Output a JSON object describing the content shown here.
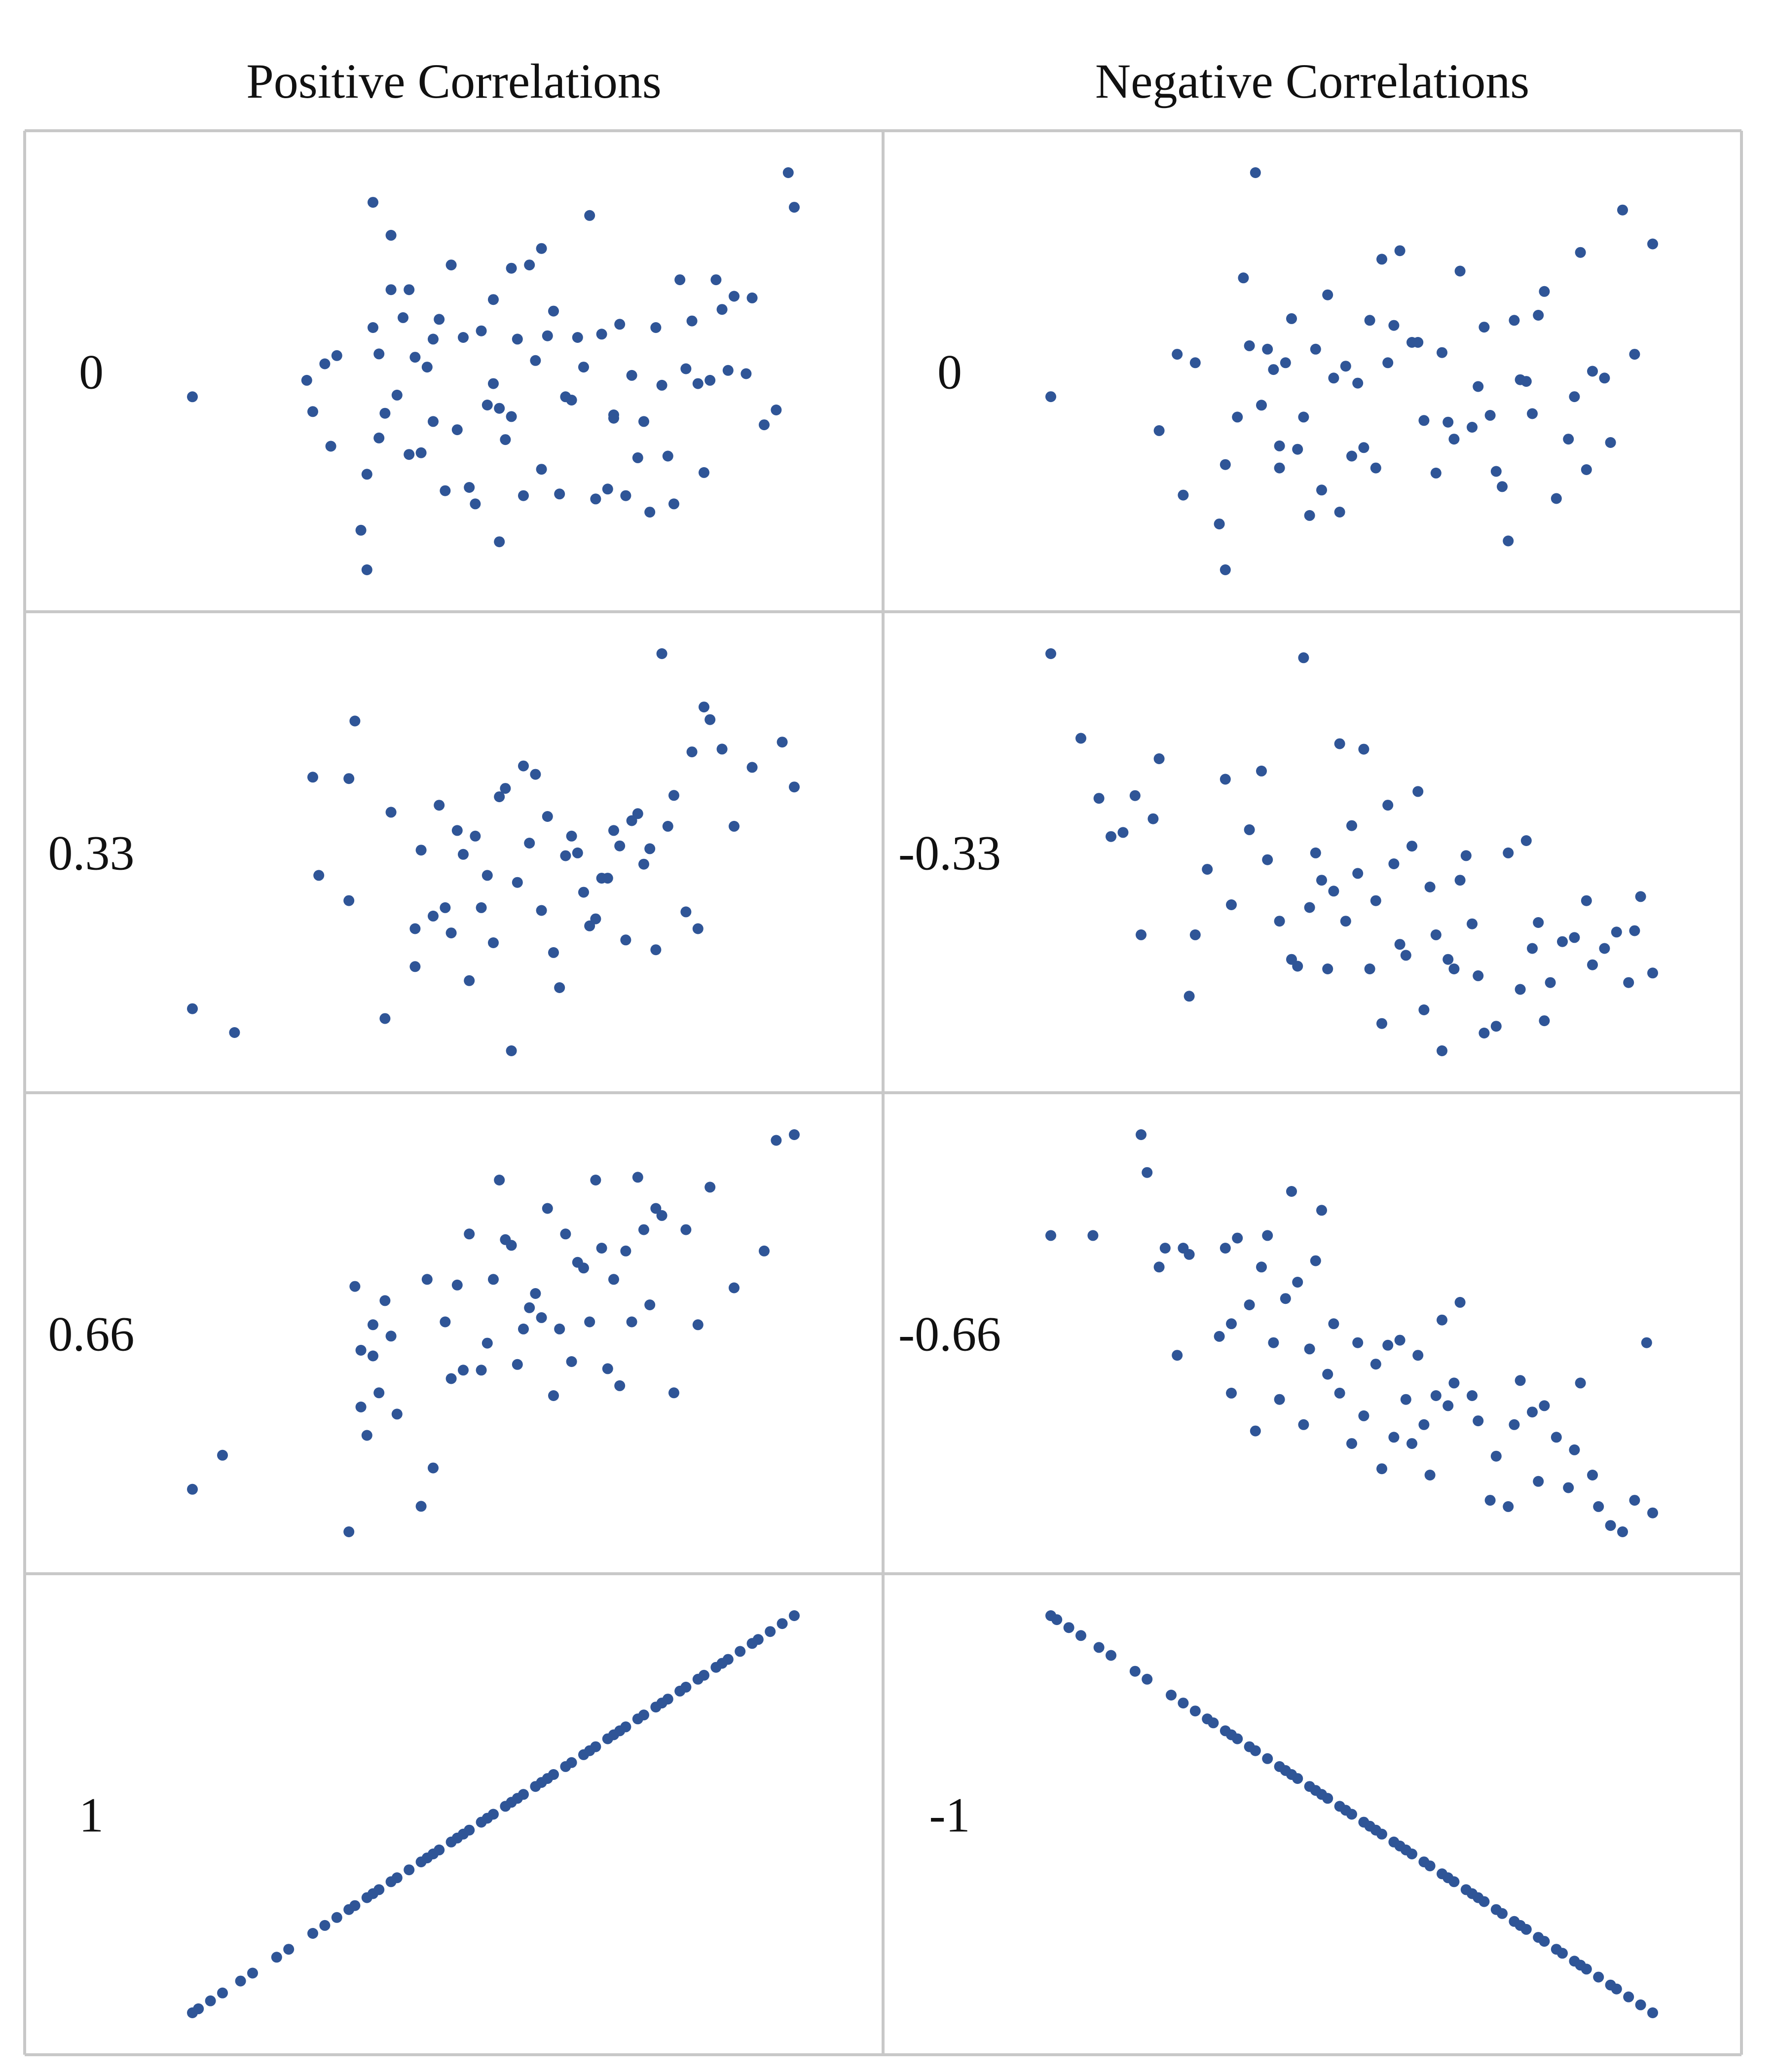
{
  "column_titles": {
    "positive": "Positive Correlations",
    "negative": "Negative Correlations"
  },
  "row_labels": {
    "positive": [
      "0",
      "0.33",
      "0.66",
      "1"
    ],
    "negative": [
      "0",
      "-0.33",
      "-0.66",
      "-1"
    ]
  },
  "colors": {
    "point": "#2f5597",
    "grid": "#c8c8c8",
    "text": "#111111"
  },
  "chart_data": [
    {
      "type": "scatter",
      "panel": "positive",
      "label": "0",
      "x": [
        0.0,
        0.19,
        0.2,
        0.22,
        0.23,
        0.24,
        0.28,
        0.29,
        0.29,
        0.3,
        0.3,
        0.31,
        0.31,
        0.32,
        0.33,
        0.33,
        0.34,
        0.35,
        0.36,
        0.36,
        0.37,
        0.38,
        0.39,
        0.4,
        0.4,
        0.41,
        0.42,
        0.43,
        0.44,
        0.45,
        0.46,
        0.47,
        0.48,
        0.49,
        0.5,
        0.5,
        0.51,
        0.51,
        0.52,
        0.53,
        0.53,
        0.54,
        0.55,
        0.56,
        0.57,
        0.58,
        0.58,
        0.59,
        0.6,
        0.61,
        0.62,
        0.63,
        0.64,
        0.65,
        0.66,
        0.67,
        0.68,
        0.69,
        0.7,
        0.7,
        0.71,
        0.72,
        0.73,
        0.74,
        0.75,
        0.76,
        0.77,
        0.78,
        0.79,
        0.8,
        0.81,
        0.82,
        0.83,
        0.84,
        0.85,
        0.86,
        0.87,
        0.88,
        0.89,
        0.9,
        0.92,
        0.93,
        0.95,
        0.97,
        0.99,
        1.0
      ],
      "y": [
        0.0,
        0.1,
        -0.09,
        0.2,
        -0.3,
        0.25,
        -0.81,
        -0.47,
        -1.05,
        1.18,
        0.42,
        0.26,
        -0.25,
        -0.1,
        0.98,
        0.65,
        0.01,
        0.48,
        -0.35,
        0.65,
        0.24,
        -0.34,
        0.18,
        0.35,
        -0.15,
        0.47,
        -0.57,
        0.8,
        -0.2,
        0.36,
        -0.55,
        -0.65,
        0.4,
        -0.05,
        0.59,
        0.08,
        -0.07,
        -0.88,
        -0.26,
        0.78,
        -0.12,
        0.35,
        -0.6,
        0.8,
        0.22,
        0.9,
        -0.44,
        0.37,
        0.52,
        -0.59,
        0.0,
        -0.02,
        0.36,
        0.18,
        1.1,
        -0.62,
        0.38,
        -0.56,
        -0.13,
        -0.11,
        0.44,
        -0.6,
        0.13,
        -0.37,
        -0.15,
        -0.7,
        0.42,
        0.07,
        -0.36,
        -0.65,
        0.71,
        0.17,
        0.46,
        0.08,
        -0.46,
        0.1,
        0.71,
        0.53,
        0.16,
        0.61,
        0.14,
        0.6,
        -0.17,
        -0.08,
        1.36,
        1.15
      ],
      "note": ""
    },
    {
      "type": "scatter",
      "panel": "negative",
      "label": "0",
      "x": [
        0.0,
        0.18,
        0.21,
        0.22,
        0.24,
        0.28,
        0.29,
        0.29,
        0.31,
        0.32,
        0.33,
        0.34,
        0.35,
        0.36,
        0.37,
        0.38,
        0.38,
        0.39,
        0.4,
        0.41,
        0.42,
        0.43,
        0.44,
        0.45,
        0.46,
        0.47,
        0.48,
        0.49,
        0.5,
        0.51,
        0.52,
        0.53,
        0.54,
        0.55,
        0.56,
        0.57,
        0.58,
        0.6,
        0.61,
        0.62,
        0.64,
        0.65,
        0.66,
        0.67,
        0.68,
        0.7,
        0.71,
        0.72,
        0.73,
        0.74,
        0.75,
        0.76,
        0.77,
        0.78,
        0.79,
        0.8,
        0.81,
        0.82,
        0.84,
        0.86,
        0.87,
        0.88,
        0.89,
        0.9,
        0.92,
        0.93,
        0.95,
        0.97,
        1.0
      ],
      "y": [
        0.0,
        -0.2,
        0.25,
        -0.58,
        0.2,
        -0.75,
        -1.02,
        -0.4,
        -0.12,
        0.7,
        0.3,
        1.32,
        -0.05,
        0.28,
        0.16,
        -0.42,
        -0.29,
        0.2,
        0.46,
        -0.31,
        -0.12,
        -0.7,
        0.28,
        -0.55,
        0.6,
        0.11,
        -0.68,
        0.18,
        -0.35,
        0.08,
        -0.3,
        0.45,
        -0.42,
        0.81,
        0.2,
        0.42,
        0.86,
        0.32,
        0.32,
        -0.14,
        -0.45,
        0.26,
        -0.15,
        -0.25,
        0.74,
        -0.18,
        0.06,
        0.41,
        -0.11,
        -0.44,
        -0.53,
        -0.85,
        0.45,
        0.1,
        0.09,
        -0.1,
        0.48,
        0.62,
        -0.6,
        -0.25,
        0.0,
        0.85,
        -0.43,
        0.15,
        0.11,
        -0.27,
        1.1,
        0.25,
        0.9
      ],
      "note": ""
    },
    {
      "type": "scatter",
      "panel": "positive",
      "label": "0.33",
      "x": [
        0.0,
        0.07,
        0.2,
        0.21,
        0.26,
        0.26,
        0.27,
        0.32,
        0.33,
        0.37,
        0.37,
        0.38,
        0.4,
        0.41,
        0.42,
        0.43,
        0.44,
        0.45,
        0.46,
        0.47,
        0.48,
        0.49,
        0.5,
        0.51,
        0.52,
        0.53,
        0.54,
        0.55,
        0.56,
        0.57,
        0.58,
        0.59,
        0.6,
        0.61,
        0.62,
        0.63,
        0.64,
        0.65,
        0.66,
        0.67,
        0.68,
        0.69,
        0.7,
        0.71,
        0.72,
        0.73,
        0.74,
        0.75,
        0.76,
        0.77,
        0.78,
        0.79,
        0.8,
        0.82,
        0.83,
        0.84,
        0.85,
        0.86,
        0.88,
        0.9,
        0.93,
        0.98,
        1.0
      ],
      "y": [
        -0.95,
        -1.12,
        0.7,
        0.0,
        0.69,
        -0.18,
        1.1,
        -1.02,
        0.45,
        -0.65,
        -0.38,
        0.18,
        -0.29,
        0.5,
        -0.23,
        -0.41,
        0.32,
        0.15,
        -0.75,
        0.28,
        -0.23,
        0.0,
        -0.48,
        0.56,
        0.62,
        -1.25,
        -0.05,
        0.78,
        0.23,
        0.72,
        -0.25,
        0.42,
        -0.55,
        -0.8,
        0.14,
        0.28,
        0.16,
        -0.12,
        -0.36,
        -0.31,
        -0.02,
        -0.02,
        0.32,
        0.21,
        -0.46,
        0.39,
        0.44,
        0.08,
        0.19,
        -0.53,
        1.58,
        0.35,
        0.57,
        -0.26,
        0.88,
        -0.38,
        1.2,
        1.11,
        0.9,
        0.35,
        0.77,
        0.95,
        0.63
      ],
      "note": ""
    },
    {
      "type": "scatter",
      "panel": "negative",
      "label": "-0.33",
      "x": [
        0.0,
        0.05,
        0.08,
        0.1,
        0.12,
        0.14,
        0.15,
        0.17,
        0.18,
        0.23,
        0.24,
        0.26,
        0.29,
        0.3,
        0.33,
        0.35,
        0.36,
        0.38,
        0.4,
        0.41,
        0.42,
        0.43,
        0.44,
        0.45,
        0.46,
        0.47,
        0.48,
        0.49,
        0.5,
        0.51,
        0.52,
        0.53,
        0.54,
        0.55,
        0.56,
        0.57,
        0.58,
        0.59,
        0.6,
        0.61,
        0.62,
        0.63,
        0.64,
        0.65,
        0.66,
        0.67,
        0.68,
        0.69,
        0.7,
        0.71,
        0.72,
        0.74,
        0.76,
        0.78,
        0.79,
        0.8,
        0.81,
        0.82,
        0.83,
        0.85,
        0.87,
        0.89,
        0.9,
        0.92,
        0.94,
        0.96,
        0.97,
        0.98,
        1.0
      ],
      "y": [
        1.86,
        1.24,
        0.8,
        0.52,
        0.55,
        0.82,
        -0.2,
        0.65,
        1.09,
        -0.65,
        -0.2,
        0.28,
        0.94,
        0.02,
        0.57,
        1.0,
        0.35,
        -0.1,
        -0.38,
        -0.43,
        1.83,
        0.0,
        0.4,
        0.2,
        -0.45,
        0.12,
        1.2,
        -0.1,
        0.6,
        0.25,
        1.16,
        -0.45,
        0.05,
        -0.85,
        0.75,
        0.32,
        -0.27,
        -0.35,
        0.45,
        0.85,
        -0.75,
        0.15,
        -0.2,
        -1.05,
        -0.38,
        -0.45,
        0.2,
        0.38,
        -0.12,
        -0.5,
        -0.92,
        -0.87,
        0.4,
        -0.6,
        0.49,
        -0.3,
        -0.11,
        -0.83,
        -0.55,
        -0.25,
        -0.22,
        0.05,
        -0.42,
        -0.3,
        -0.18,
        -0.55,
        -0.17,
        0.08,
        -0.48
      ],
      "note": ""
    },
    {
      "type": "scatter",
      "panel": "positive",
      "label": "0.66",
      "x": [
        0.0,
        0.05,
        0.26,
        0.27,
        0.28,
        0.28,
        0.29,
        0.3,
        0.3,
        0.31,
        0.32,
        0.33,
        0.34,
        0.38,
        0.39,
        0.4,
        0.42,
        0.43,
        0.44,
        0.45,
        0.46,
        0.48,
        0.49,
        0.5,
        0.51,
        0.52,
        0.53,
        0.54,
        0.55,
        0.56,
        0.57,
        0.58,
        0.59,
        0.6,
        0.61,
        0.62,
        0.63,
        0.64,
        0.65,
        0.66,
        0.67,
        0.68,
        0.69,
        0.7,
        0.71,
        0.72,
        0.73,
        0.74,
        0.75,
        0.76,
        0.77,
        0.78,
        0.8,
        0.82,
        0.84,
        0.86,
        0.9,
        0.95,
        0.97,
        1.0
      ],
      "y": [
        -1.08,
        -0.84,
        -1.38,
        0.35,
        -0.1,
        -0.5,
        -0.7,
        -0.14,
        0.08,
        -0.4,
        0.25,
        0.0,
        -0.55,
        -1.2,
        0.4,
        -0.93,
        0.1,
        -0.3,
        0.36,
        -0.24,
        0.72,
        -0.24,
        -0.05,
        0.4,
        1.1,
        0.68,
        0.64,
        -0.2,
        0.05,
        0.2,
        0.3,
        0.13,
        0.9,
        -0.42,
        0.05,
        0.72,
        -0.18,
        0.52,
        0.48,
        0.1,
        1.1,
        0.62,
        -0.23,
        0.4,
        -0.35,
        0.6,
        0.1,
        1.12,
        0.75,
        0.22,
        0.9,
        0.85,
        -0.4,
        0.75,
        0.08,
        1.05,
        0.34,
        0.6,
        1.38,
        1.42
      ],
      "note": ""
    },
    {
      "type": "scatter",
      "panel": "negative",
      "label": "-0.66",
      "x": [
        0.0,
        0.07,
        0.15,
        0.16,
        0.18,
        0.19,
        0.21,
        0.22,
        0.23,
        0.28,
        0.29,
        0.3,
        0.3,
        0.31,
        0.33,
        0.34,
        0.35,
        0.36,
        0.37,
        0.38,
        0.39,
        0.4,
        0.41,
        0.42,
        0.43,
        0.44,
        0.45,
        0.46,
        0.47,
        0.48,
        0.5,
        0.51,
        0.52,
        0.54,
        0.55,
        0.56,
        0.57,
        0.58,
        0.59,
        0.6,
        0.61,
        0.62,
        0.63,
        0.64,
        0.65,
        0.66,
        0.67,
        0.68,
        0.7,
        0.71,
        0.73,
        0.74,
        0.76,
        0.77,
        0.78,
        0.8,
        0.81,
        0.82,
        0.84,
        0.86,
        0.87,
        0.88,
        0.9,
        0.91,
        0.93,
        0.95,
        0.97,
        0.99,
        1.0
      ],
      "y": [
        1.05,
        1.05,
        1.85,
        1.55,
        0.8,
        0.95,
        0.1,
        0.95,
        0.9,
        0.25,
        0.95,
        0.35,
        -0.2,
        1.03,
        0.5,
        -0.5,
        0.8,
        1.05,
        0.2,
        -0.25,
        0.55,
        1.4,
        0.68,
        -0.45,
        0.15,
        0.85,
        1.25,
        -0.05,
        0.35,
        -0.2,
        -0.6,
        0.2,
        -0.38,
        0.03,
        -0.8,
        0.18,
        -0.55,
        0.22,
        -0.25,
        -0.6,
        0.1,
        -0.45,
        -0.85,
        -0.22,
        0.38,
        -0.3,
        -0.12,
        0.52,
        -0.22,
        -0.42,
        -1.05,
        -0.7,
        -1.1,
        -0.45,
        -0.1,
        -0.35,
        -0.9,
        -0.3,
        -0.55,
        -0.95,
        -0.65,
        -0.12,
        -0.85,
        -1.1,
        -1.25,
        -1.3,
        -1.05,
        0.2,
        -1.15
      ],
      "note": ""
    },
    {
      "type": "scatter",
      "panel": "positive",
      "label": "1",
      "x": [
        0.0,
        0.01,
        0.03,
        0.05,
        0.08,
        0.1,
        0.14,
        0.16,
        0.2,
        0.22,
        0.24,
        0.26,
        0.27,
        0.29,
        0.3,
        0.31,
        0.33,
        0.34,
        0.36,
        0.38,
        0.39,
        0.4,
        0.41,
        0.43,
        0.44,
        0.45,
        0.46,
        0.48,
        0.49,
        0.5,
        0.52,
        0.53,
        0.54,
        0.55,
        0.57,
        0.58,
        0.59,
        0.6,
        0.62,
        0.63,
        0.65,
        0.66,
        0.67,
        0.69,
        0.7,
        0.71,
        0.72,
        0.74,
        0.75,
        0.77,
        0.78,
        0.79,
        0.81,
        0.82,
        0.84,
        0.85,
        0.87,
        0.88,
        0.89,
        0.91,
        0.93,
        0.94,
        0.96,
        0.98,
        1.0
      ],
      "y": [
        0.0,
        0.01,
        0.03,
        0.05,
        0.08,
        0.1,
        0.14,
        0.16,
        0.2,
        0.22,
        0.24,
        0.26,
        0.27,
        0.29,
        0.3,
        0.31,
        0.33,
        0.34,
        0.36,
        0.38,
        0.39,
        0.4,
        0.41,
        0.43,
        0.44,
        0.45,
        0.46,
        0.48,
        0.49,
        0.5,
        0.52,
        0.53,
        0.54,
        0.55,
        0.57,
        0.58,
        0.59,
        0.6,
        0.62,
        0.63,
        0.65,
        0.66,
        0.67,
        0.69,
        0.7,
        0.71,
        0.72,
        0.74,
        0.75,
        0.77,
        0.78,
        0.79,
        0.81,
        0.82,
        0.84,
        0.85,
        0.87,
        0.88,
        0.89,
        0.91,
        0.93,
        0.94,
        0.96,
        0.98,
        1.0
      ],
      "note": ""
    },
    {
      "type": "scatter",
      "panel": "negative",
      "label": "-1",
      "x": [
        0.0,
        0.01,
        0.03,
        0.05,
        0.08,
        0.1,
        0.14,
        0.16,
        0.2,
        0.22,
        0.24,
        0.26,
        0.27,
        0.29,
        0.3,
        0.31,
        0.33,
        0.34,
        0.36,
        0.38,
        0.39,
        0.4,
        0.41,
        0.43,
        0.44,
        0.45,
        0.46,
        0.48,
        0.49,
        0.5,
        0.52,
        0.53,
        0.54,
        0.55,
        0.57,
        0.58,
        0.59,
        0.6,
        0.62,
        0.63,
        0.65,
        0.66,
        0.67,
        0.69,
        0.7,
        0.71,
        0.72,
        0.74,
        0.75,
        0.77,
        0.78,
        0.79,
        0.81,
        0.82,
        0.84,
        0.85,
        0.87,
        0.88,
        0.89,
        0.91,
        0.93,
        0.94,
        0.96,
        0.98,
        1.0
      ],
      "y": [
        1.0,
        0.99,
        0.97,
        0.95,
        0.92,
        0.9,
        0.86,
        0.84,
        0.8,
        0.78,
        0.76,
        0.74,
        0.73,
        0.71,
        0.7,
        0.69,
        0.67,
        0.66,
        0.64,
        0.62,
        0.61,
        0.6,
        0.59,
        0.57,
        0.56,
        0.55,
        0.54,
        0.52,
        0.51,
        0.5,
        0.48,
        0.47,
        0.46,
        0.45,
        0.43,
        0.42,
        0.41,
        0.4,
        0.38,
        0.37,
        0.35,
        0.34,
        0.33,
        0.31,
        0.3,
        0.29,
        0.28,
        0.26,
        0.25,
        0.23,
        0.22,
        0.21,
        0.19,
        0.18,
        0.16,
        0.15,
        0.13,
        0.12,
        0.11,
        0.09,
        0.07,
        0.06,
        0.04,
        0.02,
        0.0
      ],
      "note": ""
    }
  ]
}
